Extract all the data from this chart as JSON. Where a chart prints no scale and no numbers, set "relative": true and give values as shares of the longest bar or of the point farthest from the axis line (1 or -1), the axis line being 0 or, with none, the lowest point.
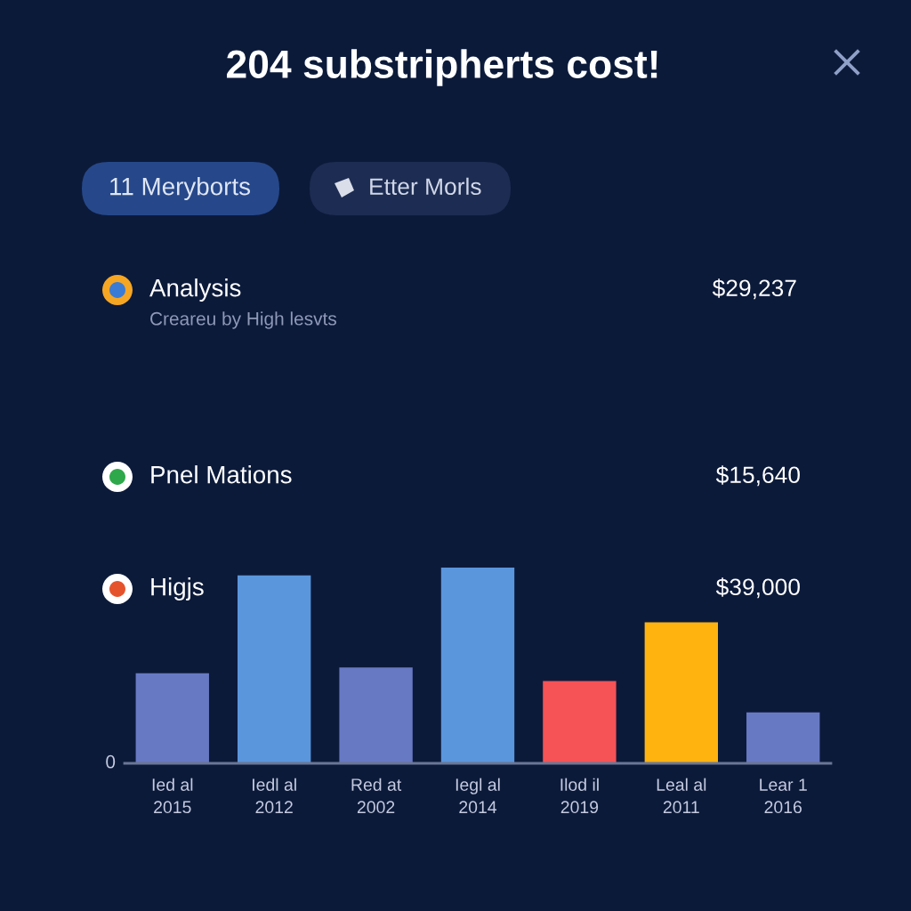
{
  "chart_data": {
    "type": "bar",
    "title": "204 substripherts cost!",
    "categories": [
      "Ied al\n2015",
      "Iedl al\n2012",
      "Red at\n2002",
      "Iegl al\n2014",
      "Ilod il\n2019",
      "Leal al\n2011",
      "Lear 1\n2016"
    ],
    "values": [
      0.46,
      0.96,
      0.49,
      1,
      0.42,
      0.72,
      0.26
    ],
    "colors": [
      "#6879c4",
      "#5a96dc",
      "#6879c4",
      "#5a96dc",
      "#f55356",
      "#ffb30f",
      "#6879c4"
    ],
    "relative": true,
    "grid": false,
    "annotations": [
      "11 Meryborts",
      "Etter Morls",
      "Analysis",
      "Creareu by High lesvts",
      "$29,237",
      "Pnel Mations",
      "$15,640",
      "Higjs",
      "$39,000",
      "0"
    ]
  }
}
